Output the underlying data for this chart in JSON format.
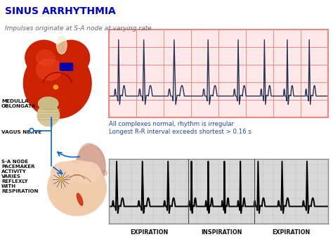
{
  "title": "SINUS ARRHYTHMIA",
  "subtitle": "Impulses originate at S-A node at varying rate",
  "title_color": "#0000cc",
  "subtitle_color": "#666666",
  "ecg_note1": "All complexes normal, rhythm is irregular",
  "ecg_note2": "Longest R-R interval exceeds shortest > 0.16 s",
  "note_color": "#2244aa",
  "label_medulla": "MEDULLA\nOBLONGATA",
  "label_vagus": "VAGUS NERVE",
  "label_sa": "S-A NODE\nPACEMAKER\nACTIVITY\nVARIES\nREFLEXLY\nWITH\nRESPIRATION",
  "label_expiration1": "EXPIRATION",
  "label_inspiration": "INSPIRATION",
  "label_expiration2": "EXPIRATION",
  "ecg_bg_top": "#ffe8e8",
  "ecg_grid_top": "#ee8888",
  "ecg_line_top": "#223355",
  "ecg_bg_bottom": "#d8d8d8",
  "ecg_grid_bottom": "#aaaaaa",
  "ecg_line_bottom": "#000000",
  "bg_color": "#ffffff",
  "nerve_color": "#1166cc",
  "heart_color": "#cc2200",
  "heart_highlight": "#ee4422",
  "medulla_color": "#d4c898",
  "lung_color": "#cc9988",
  "sa_heart_color": "#f0ccaa"
}
